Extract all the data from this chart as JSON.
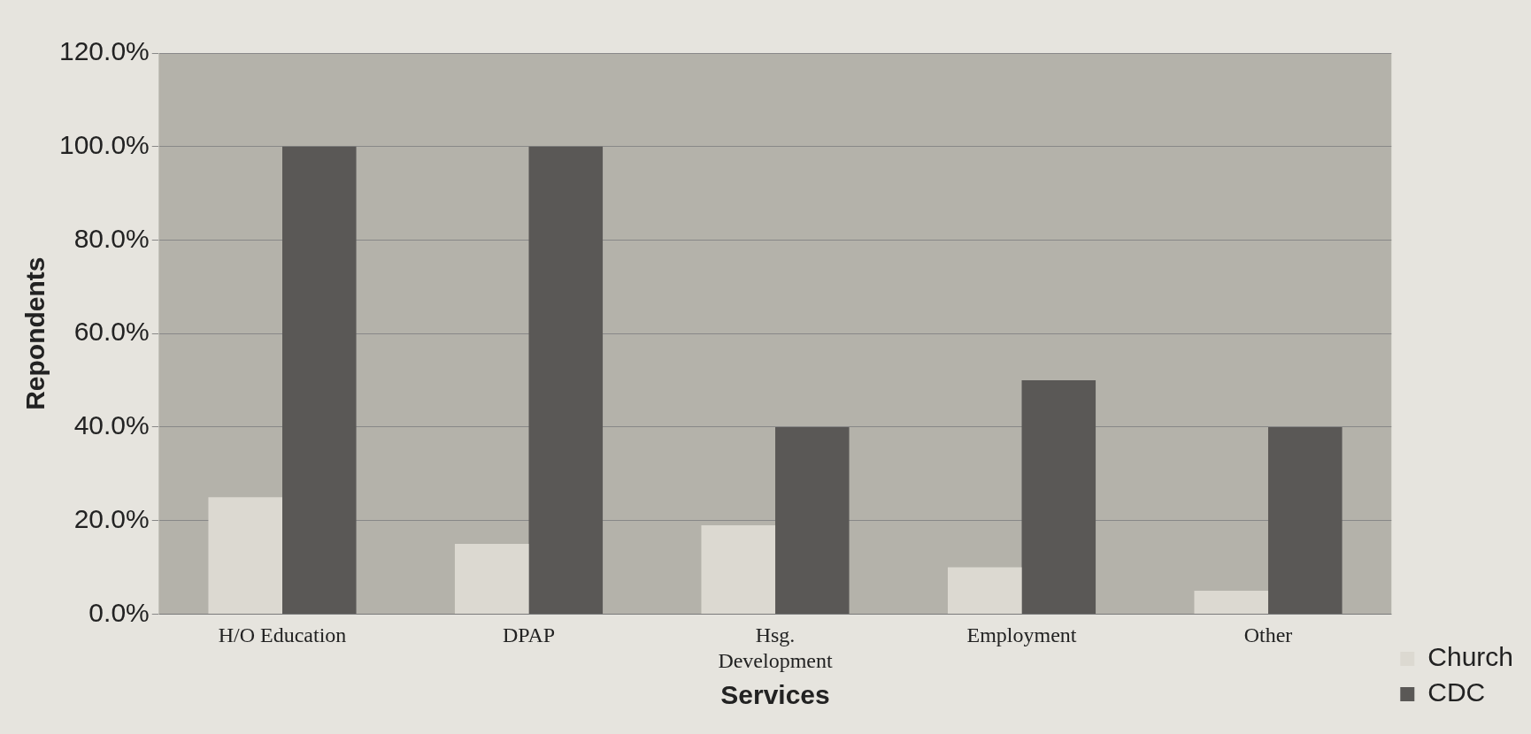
{
  "chart_data": {
    "type": "bar",
    "xlabel": "Services",
    "ylabel": "Repondents",
    "categories": [
      "H/O Education",
      "DPAP",
      "Hsg. Development",
      "Employment",
      "Other"
    ],
    "series": [
      {
        "name": "Church",
        "color": "#dcd9d1",
        "values": [
          25,
          15,
          19,
          10,
          5
        ]
      },
      {
        "name": "CDC",
        "color": "#5a5856",
        "values": [
          100,
          100,
          40,
          50,
          40
        ]
      }
    ],
    "ylim": [
      0,
      120
    ],
    "yticks": [
      {
        "value": 0,
        "label": "0.0%"
      },
      {
        "value": 20,
        "label": "20.0%"
      },
      {
        "value": 40,
        "label": "40.0%"
      },
      {
        "value": 60,
        "label": "60.0%"
      },
      {
        "value": 80,
        "label": "80.0%"
      },
      {
        "value": 100,
        "label": "100.0%"
      },
      {
        "value": 120,
        "label": "120.0%"
      }
    ],
    "grid": "y",
    "legend": "bottom right"
  }
}
